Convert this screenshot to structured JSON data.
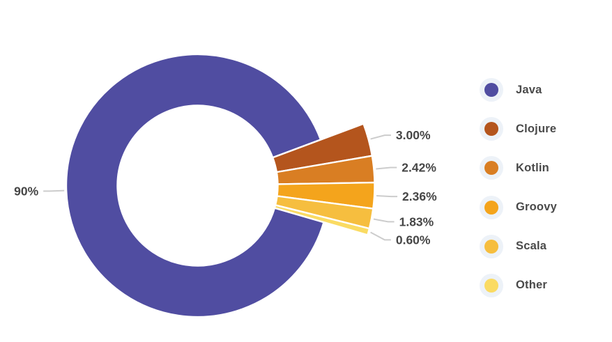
{
  "colors": {
    "background": "#ffffff",
    "label_text": "#464646",
    "legend_text": "#4a4a4a",
    "leader_line": "#cccccc",
    "legend_halo": "#edf2f8",
    "slice_gap": "#ffffff"
  },
  "chart_data": {
    "type": "pie",
    "subtype": "donut",
    "title": "",
    "categories": [
      "Java",
      "Clojure",
      "Kotlin",
      "Groovy",
      "Scala",
      "Other"
    ],
    "values": [
      90,
      3.0,
      2.42,
      2.36,
      1.83,
      0.6
    ],
    "labels": [
      "90%",
      "3.00%",
      "2.42%",
      "2.36%",
      "1.83%",
      "0.60%"
    ],
    "slice_colors": [
      "#504da1",
      "#b4551d",
      "#d97e23",
      "#f4a41c",
      "#f6be3f",
      "#fadb63"
    ],
    "legend_position": "right",
    "start_angle_deg": 16.2,
    "direction": "clockwise",
    "grid": false
  }
}
